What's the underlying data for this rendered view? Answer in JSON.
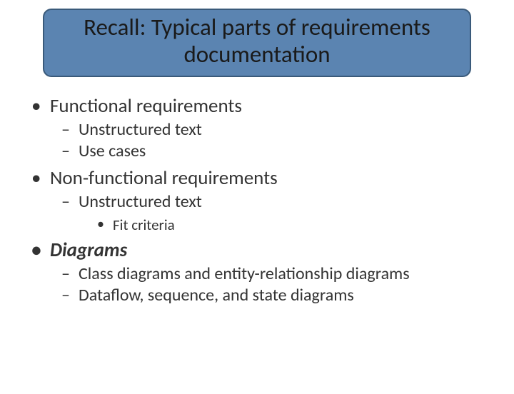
{
  "slide": {
    "title": "Recall: Typical parts of requirements documentation",
    "title_box": {
      "background_color": "#5b84b1",
      "border_color": "#3a5a7a",
      "border_radius": 12,
      "border_width": 2,
      "font_size": 33,
      "font_weight": 400,
      "text_color": "#1a1a1a"
    },
    "background_color": "#ffffff",
    "body_text_color": "#333333",
    "font_family": "Calibri",
    "bullets": [
      {
        "level": 1,
        "text": "Functional requirements",
        "emphasis": false,
        "children": [
          {
            "level": 2,
            "text": "Unstructured text"
          },
          {
            "level": 2,
            "text": "Use cases"
          }
        ]
      },
      {
        "level": 1,
        "text": "Non-functional requirements",
        "emphasis": false,
        "children": [
          {
            "level": 2,
            "text": "Unstructured text",
            "children": [
              {
                "level": 3,
                "text": "Fit criteria"
              }
            ]
          }
        ]
      },
      {
        "level": 1,
        "text": "Diagrams",
        "emphasis": true,
        "children": [
          {
            "level": 2,
            "text": "Class diagrams and entity-relationship diagrams"
          },
          {
            "level": 2,
            "text": "Dataflow, sequence, and state diagrams"
          }
        ]
      }
    ],
    "level_styles": {
      "1": {
        "font_size": 27,
        "marker": "•",
        "indent": 30
      },
      "2": {
        "font_size": 24,
        "marker": "–",
        "indent": 70
      },
      "3": {
        "font_size": 21,
        "marker": "•",
        "indent": 118
      }
    }
  }
}
